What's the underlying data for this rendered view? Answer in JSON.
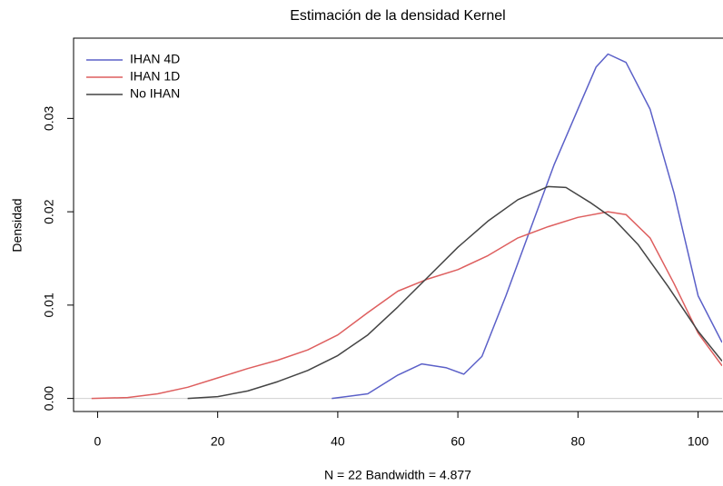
{
  "chart_data": {
    "type": "line",
    "title": "Estimación de la densidad Kernel",
    "xlabel": "N = 22   Bandwidth = 4.877",
    "ylabel": "Densidad",
    "xlim": [
      -4,
      104
    ],
    "ylim": [
      -0.0014,
      0.0386
    ],
    "xticks": [
      0,
      20,
      40,
      60,
      80,
      100
    ],
    "yticks": [
      {
        "value": 0,
        "label": "0.00"
      },
      0.01,
      0.02,
      0.03
    ],
    "legend": "top-left",
    "series": [
      {
        "name": "IHAN 4D",
        "color": "#5b60c8",
        "x": [
          39,
          45,
          50,
          54,
          58,
          61,
          64,
          68,
          72,
          76,
          80,
          83,
          85,
          88,
          92,
          96,
          100,
          104
        ],
        "values": [
          0,
          0.0005,
          0.0025,
          0.0037,
          0.0033,
          0.0026,
          0.0045,
          0.011,
          0.018,
          0.025,
          0.031,
          0.0355,
          0.0369,
          0.036,
          0.031,
          0.022,
          0.011,
          0.006
        ]
      },
      {
        "name": "IHAN 1D",
        "color": "#de5f5f",
        "x": [
          -1,
          5,
          10,
          15,
          20,
          25,
          30,
          35,
          40,
          45,
          50,
          55,
          60,
          65,
          70,
          75,
          80,
          85,
          88,
          92,
          96,
          100,
          104
        ],
        "values": [
          0,
          0.0001,
          0.0005,
          0.0012,
          0.0022,
          0.0032,
          0.0041,
          0.0052,
          0.0068,
          0.0092,
          0.0115,
          0.0128,
          0.0138,
          0.0153,
          0.0172,
          0.0184,
          0.0194,
          0.02,
          0.0197,
          0.0172,
          0.0123,
          0.007,
          0.0035
        ]
      },
      {
        "name": "No IHAN",
        "color": "#444444",
        "x": [
          15,
          20,
          25,
          30,
          35,
          40,
          45,
          50,
          55,
          60,
          65,
          70,
          75,
          78,
          82,
          86,
          90,
          95,
          100,
          104
        ],
        "values": [
          0,
          0.0002,
          0.0008,
          0.0018,
          0.003,
          0.0046,
          0.0068,
          0.0098,
          0.013,
          0.0162,
          0.019,
          0.0213,
          0.0227,
          0.0226,
          0.021,
          0.0192,
          0.0165,
          0.012,
          0.0072,
          0.004
        ]
      }
    ]
  }
}
